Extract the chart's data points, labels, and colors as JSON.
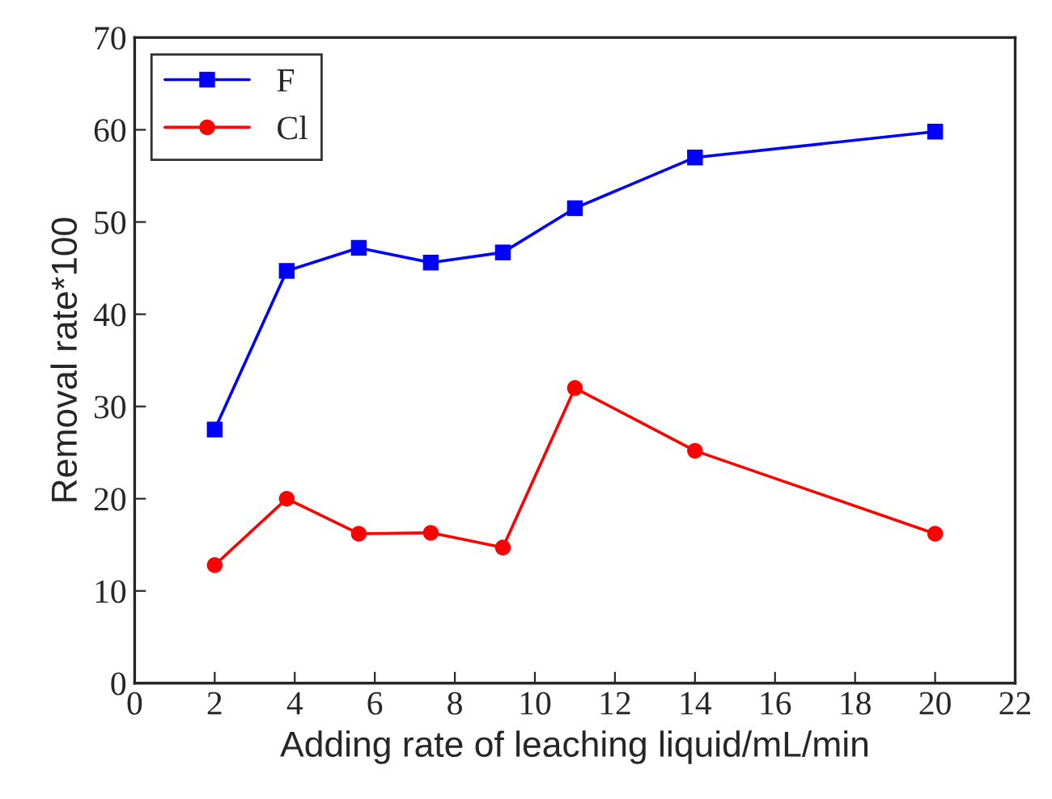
{
  "chart_data": {
    "type": "line",
    "xlabel": "Adding rate of leaching liquid/mL/min",
    "ylabel": "Removal rate*100",
    "x": [
      2,
      3.8,
      5.6,
      7.4,
      9.2,
      11,
      14,
      20
    ],
    "series": [
      {
        "name": "F",
        "color": "#0000ff",
        "marker": "square",
        "values": [
          27.5,
          44.7,
          47.2,
          45.6,
          46.7,
          51.5,
          57,
          59.8
        ]
      },
      {
        "name": "Cl",
        "color": "#ff0000",
        "marker": "circle",
        "values": [
          12.8,
          20,
          16.2,
          16.3,
          14.7,
          32,
          25.2,
          16.2
        ]
      }
    ],
    "xlim": [
      0,
      22
    ],
    "xticks": [
      0,
      2,
      4,
      6,
      8,
      10,
      12,
      14,
      16,
      18,
      20,
      22
    ],
    "ylim": [
      0,
      70
    ],
    "yticks": [
      0,
      10,
      20,
      30,
      40,
      50,
      60,
      70
    ],
    "legend": "top left",
    "grid": false,
    "line_style": "solid"
  }
}
